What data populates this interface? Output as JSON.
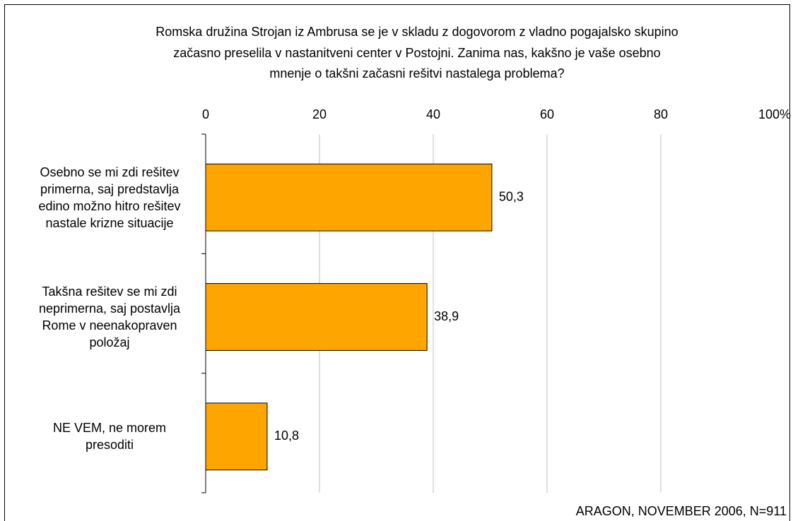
{
  "chart_data": {
    "type": "hbar",
    "title": [
      "Romska družina Strojan iz Ambrusa se je v skladu z dogovorom z vladno pogajalsko skupino",
      "začasno preselila v nastanitveni center v Postojni. Zanima nas, kakšno je vaše osebno",
      "mnenje o takšni začasni rešitvi nastalega problema?"
    ],
    "categories": [
      "Osebno se mi zdi rešitev\nprimerna, saj predstavlja\nedino možno hitro rešitev\nnastale krizne situacije",
      "Takšna rešitev se mi zdi\nneprimerna, saj postavlja\nRome v neenakopraven\npoložaj",
      "NE VEM, ne morem\npresoditi"
    ],
    "values": [
      50.3,
      38.9,
      10.8
    ],
    "value_labels": [
      "50,3",
      "38,9",
      "10,8"
    ],
    "color": "#ffa500",
    "xlim": [
      0,
      100
    ],
    "xticks": [
      0,
      20,
      40,
      60,
      80,
      {
        "value": 100,
        "label": "100%"
      }
    ],
    "grid": true,
    "source": "ARAGON, NOVEMBER 2006, N=911"
  }
}
